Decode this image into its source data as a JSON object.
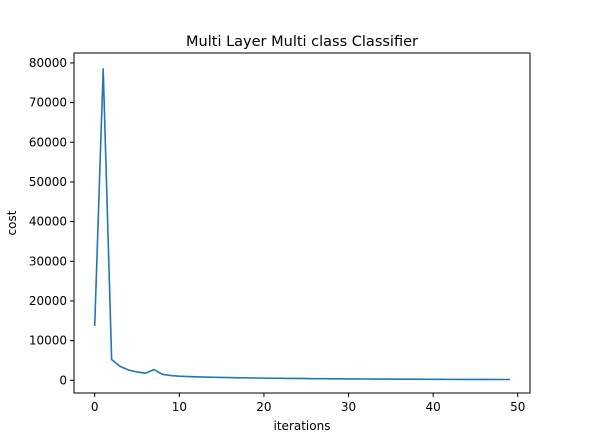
{
  "chart_data": {
    "type": "line",
    "title": "Multi Layer Multi class Classifier",
    "xlabel": "iterations",
    "ylabel": "cost",
    "xlim": [
      -2.45,
      51.45
    ],
    "ylim": [
      -3200,
      82500
    ],
    "xticks": [
      0,
      10,
      20,
      30,
      40,
      50
    ],
    "yticks": [
      0,
      10000,
      20000,
      30000,
      40000,
      50000,
      60000,
      70000,
      80000
    ],
    "grid": false,
    "legend": "none",
    "series": [
      {
        "color": "#1f77b4",
        "x": [
          0,
          1,
          2,
          3,
          4,
          5,
          6,
          7,
          8,
          9,
          10,
          11,
          12,
          13,
          14,
          15,
          16,
          17,
          18,
          19,
          20,
          21,
          22,
          23,
          24,
          25,
          26,
          27,
          28,
          29,
          30,
          31,
          32,
          33,
          34,
          35,
          36,
          37,
          38,
          39,
          40,
          41,
          42,
          43,
          44,
          45,
          46,
          47,
          48,
          49
        ],
        "y": [
          13900,
          78500,
          5200,
          3500,
          2600,
          2100,
          1800,
          2700,
          1500,
          1200,
          1050,
          950,
          880,
          820,
          770,
          720,
          680,
          640,
          610,
          580,
          550,
          520,
          500,
          480,
          460,
          440,
          420,
          400,
          385,
          370,
          355,
          340,
          330,
          320,
          310,
          300,
          290,
          280,
          270,
          260,
          250,
          240,
          235,
          230,
          225,
          220,
          215,
          210,
          205,
          200
        ]
      }
    ]
  }
}
